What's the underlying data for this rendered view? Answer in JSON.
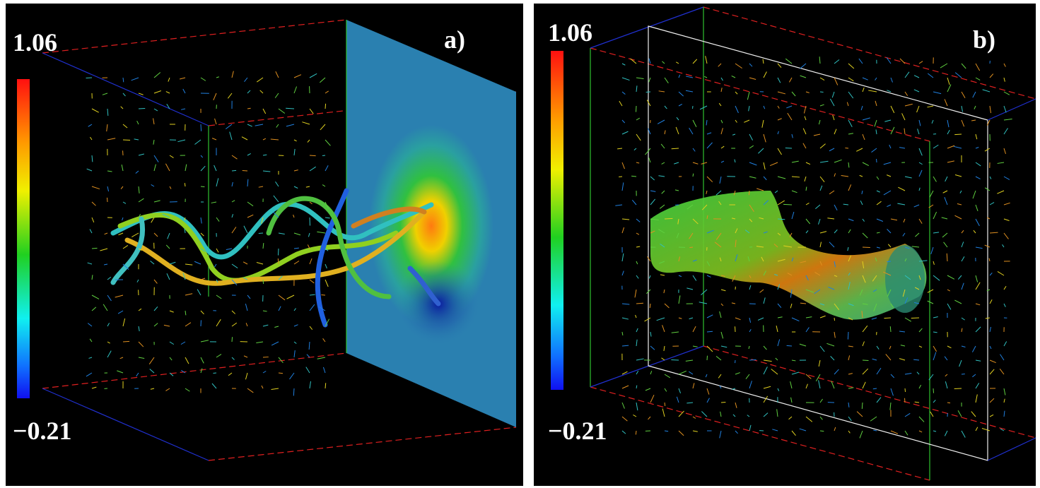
{
  "panels": [
    {
      "label": "a)",
      "colorbar": {
        "max": "1.06",
        "min": "−0.21"
      }
    },
    {
      "label": "b)",
      "colorbar": {
        "max": "1.06",
        "min": "−0.21"
      }
    }
  ]
}
